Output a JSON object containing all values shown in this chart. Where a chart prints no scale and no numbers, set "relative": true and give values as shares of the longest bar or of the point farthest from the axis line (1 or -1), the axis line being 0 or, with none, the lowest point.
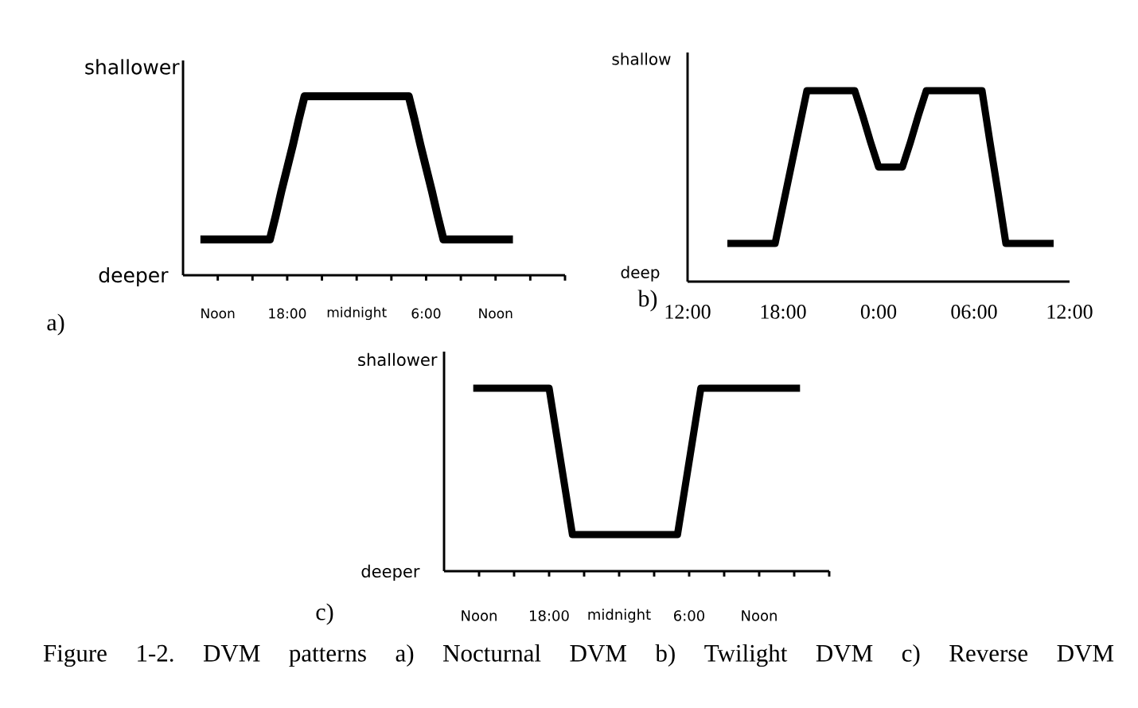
{
  "chart_data": [
    {
      "type": "line",
      "title": "a)",
      "relative": true,
      "color": "#000000",
      "categories": [
        null,
        null,
        null,
        null,
        null,
        null,
        "Noon",
        null,
        null,
        null,
        null,
        null,
        null,
        null,
        null,
        null,
        null,
        null,
        "18:00",
        null,
        null,
        null,
        null,
        null,
        null,
        null,
        null,
        null,
        null,
        null,
        "midnight",
        null,
        null,
        null,
        null,
        null,
        null,
        null,
        null,
        null,
        null,
        null,
        "6:00",
        null,
        null,
        null,
        null,
        null,
        null,
        null,
        null,
        null,
        null,
        null,
        "Noon",
        null,
        null,
        null,
        null,
        null,
        null,
        null,
        null,
        null,
        null,
        null,
        null
      ],
      "values": [
        null,
        null,
        null,
        0.2,
        0.2,
        0.2,
        0.2,
        0.2,
        0.2,
        0.2,
        0.2,
        0.2,
        0.2,
        0.2,
        0.2,
        0.2,
        0.33,
        0.47,
        0.6,
        0.73,
        0.87,
        1,
        1,
        1,
        1,
        1,
        1,
        1,
        1,
        1,
        1,
        1,
        1,
        1,
        1,
        1,
        1,
        1,
        1,
        1,
        0.87,
        0.73,
        0.6,
        0.47,
        0.33,
        0.2,
        0.2,
        0.2,
        0.2,
        0.2,
        0.2,
        0.2,
        0.2,
        0.2,
        0.2,
        0.2,
        0.2,
        0.2,
        null,
        null,
        null,
        null,
        null,
        null,
        null,
        null,
        null
      ],
      "annotations": [
        "shallower",
        "deeper"
      ]
    },
    {
      "type": "line",
      "title": "b)",
      "relative": true,
      "color": "#000000",
      "categories": [
        "12:00",
        null,
        null,
        null,
        null,
        null,
        null,
        null,
        null,
        null,
        null,
        null,
        "18:00",
        null,
        null,
        null,
        null,
        null,
        null,
        null,
        null,
        null,
        null,
        null,
        "0:00",
        null,
        null,
        null,
        null,
        null,
        null,
        null,
        null,
        null,
        null,
        null,
        "06:00",
        null,
        null,
        null,
        null,
        null,
        null,
        null,
        null,
        null,
        null,
        null,
        "12:00"
      ],
      "values": [
        null,
        null,
        null,
        null,
        null,
        0.2,
        0.2,
        0.2,
        0.2,
        0.2,
        0.2,
        0.2,
        0.4,
        0.6,
        0.8,
        1,
        1,
        1,
        1,
        1,
        1,
        1,
        0.87,
        0.73,
        0.6,
        0.6,
        0.6,
        0.6,
        0.73,
        0.87,
        1,
        1,
        1,
        1,
        1,
        1,
        1,
        1,
        0.73,
        0.47,
        0.2,
        0.2,
        0.2,
        0.2,
        0.2,
        0.2,
        0.2,
        null,
        null
      ],
      "annotations": [
        "shallow",
        "deep"
      ]
    },
    {
      "type": "line",
      "title": "c)",
      "relative": true,
      "color": "#000000",
      "categories": [
        null,
        null,
        null,
        null,
        null,
        null,
        "Noon",
        null,
        null,
        null,
        null,
        null,
        null,
        null,
        null,
        null,
        null,
        null,
        "18:00",
        null,
        null,
        null,
        null,
        null,
        null,
        null,
        null,
        null,
        null,
        null,
        "midnight",
        null,
        null,
        null,
        null,
        null,
        null,
        null,
        null,
        null,
        null,
        null,
        "6:00",
        null,
        null,
        null,
        null,
        null,
        null,
        null,
        null,
        null,
        null,
        null,
        "Noon",
        null,
        null,
        null,
        null,
        null,
        null,
        null,
        null,
        null,
        null,
        null,
        null
      ],
      "values": [
        null,
        null,
        null,
        null,
        null,
        1,
        1,
        1,
        1,
        1,
        1,
        1,
        1,
        1,
        1,
        1,
        1,
        1,
        1,
        0.8,
        0.6,
        0.4,
        0.2,
        0.2,
        0.2,
        0.2,
        0.2,
        0.2,
        0.2,
        0.2,
        0.2,
        0.2,
        0.2,
        0.2,
        0.2,
        0.2,
        0.2,
        0.2,
        0.2,
        0.2,
        0.2,
        0.4,
        0.6,
        0.8,
        1,
        1,
        1,
        1,
        1,
        1,
        1,
        1,
        1,
        1,
        1,
        1,
        1,
        1,
        1,
        1,
        1,
        1,
        null,
        null,
        null,
        null,
        null
      ],
      "annotations": [
        "shallower",
        "deeper",
        "Figure 1-2. DVM patterns a) Nocturnal DVM b) Twilight DVM c) Reverse DVM"
      ]
    }
  ]
}
